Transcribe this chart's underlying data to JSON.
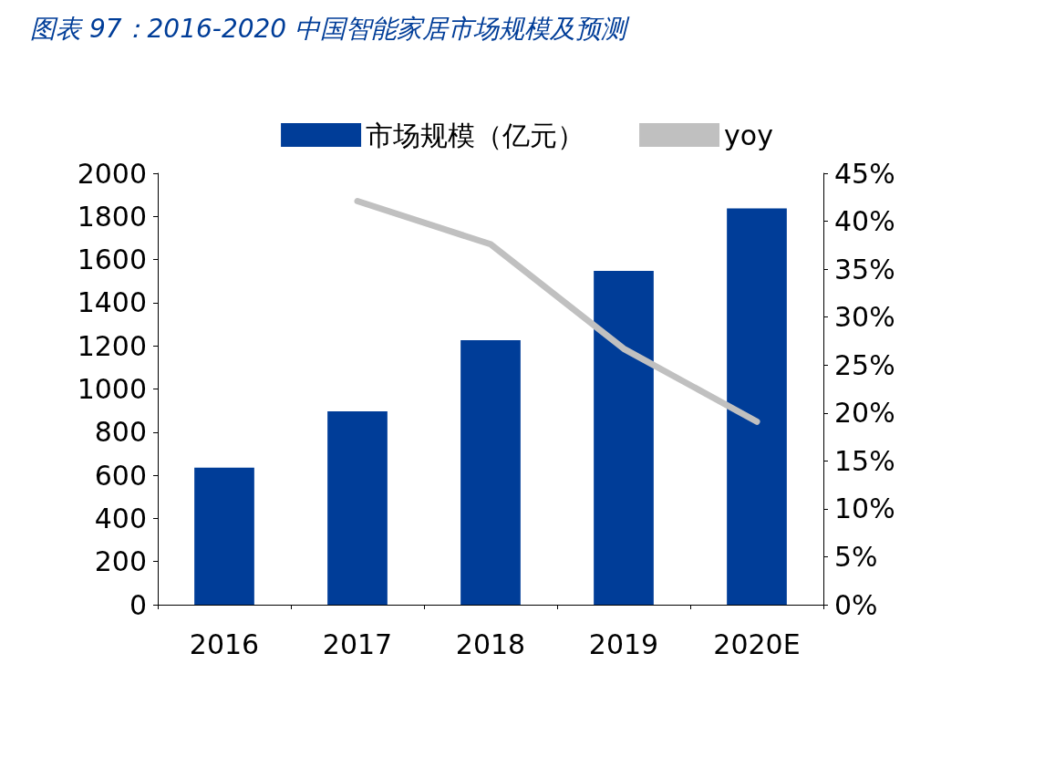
{
  "chart_data": {
    "type": "bar",
    "title": "图表 97：2016-2020 中国智能家居市场规模及预测",
    "categories": [
      "2016",
      "2017",
      "2018",
      "2019",
      "2020E"
    ],
    "series": [
      {
        "name": "市场规模（亿元）",
        "color": "#003d98",
        "values": [
          635,
          896,
          1226,
          1548,
          1837
        ]
      },
      {
        "name": "yoy",
        "type": "line",
        "axis": "y2",
        "color": "#c0c0c0",
        "values": [
          null,
          42.1,
          37.6,
          26.7,
          19.1
        ]
      }
    ],
    "ylim": [
      0,
      2000
    ],
    "yticks": [
      0,
      200,
      400,
      600,
      800,
      1000,
      1200,
      1400,
      1600,
      1800,
      2000
    ],
    "y2lim": [
      0,
      45
    ],
    "y2ticks": [
      {
        "value": 0,
        "label": "0%"
      },
      {
        "value": 5,
        "label": "5%"
      },
      {
        "value": 10,
        "label": "10%"
      },
      {
        "value": 15,
        "label": "15%"
      },
      {
        "value": 20,
        "label": "20%"
      },
      {
        "value": 25,
        "label": "25%"
      },
      {
        "value": 30,
        "label": "30%"
      },
      {
        "value": 35,
        "label": "35%"
      },
      {
        "value": 40,
        "label": "40%"
      },
      {
        "value": 45,
        "label": "45%"
      }
    ],
    "legend": "top",
    "grid": false,
    "marker": "none",
    "line_style": "solid"
  }
}
